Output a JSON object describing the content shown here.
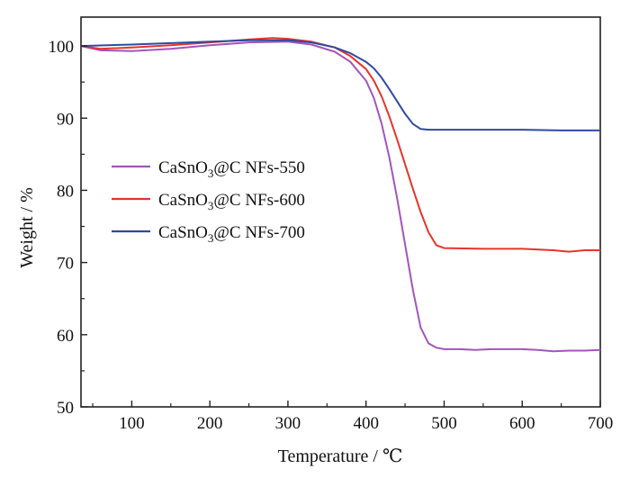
{
  "chart_data": {
    "type": "line",
    "xlabel": "Temperature / ℃",
    "ylabel": "Weight / %",
    "xlim": [
      35,
      700
    ],
    "ylim": [
      50,
      104
    ],
    "xticks": [
      "100",
      "200",
      "300",
      "400",
      "500",
      "600",
      "700"
    ],
    "yticks": [
      "50",
      "60",
      "70",
      "80",
      "90",
      "100"
    ],
    "legend_position": "middle-left",
    "grid": false,
    "series": [
      {
        "name": "CaSnO3@C NFs-550",
        "name_main": "CaSnO",
        "name_sub": "3",
        "name_tail": "@C NFs-550",
        "color": "#a455b8",
        "points": [
          [
            35,
            100
          ],
          [
            60,
            99.4
          ],
          [
            100,
            99.3
          ],
          [
            150,
            99.6
          ],
          [
            200,
            100.1
          ],
          [
            250,
            100.5
          ],
          [
            300,
            100.6
          ],
          [
            330,
            100.2
          ],
          [
            360,
            99.2
          ],
          [
            380,
            97.8
          ],
          [
            400,
            95.2
          ],
          [
            410,
            92.8
          ],
          [
            420,
            89.2
          ],
          [
            430,
            84.5
          ],
          [
            440,
            78.8
          ],
          [
            450,
            72.5
          ],
          [
            460,
            66.2
          ],
          [
            470,
            61.0
          ],
          [
            480,
            58.8
          ],
          [
            490,
            58.2
          ],
          [
            500,
            58.0
          ],
          [
            520,
            58.0
          ],
          [
            540,
            57.9
          ],
          [
            560,
            58.0
          ],
          [
            580,
            58.0
          ],
          [
            600,
            58.0
          ],
          [
            620,
            57.9
          ],
          [
            640,
            57.7
          ],
          [
            660,
            57.8
          ],
          [
            680,
            57.8
          ],
          [
            700,
            57.9
          ]
        ]
      },
      {
        "name": "CaSnO3@C NFs-600",
        "name_main": "CaSnO",
        "name_sub": "3",
        "name_tail": "@C NFs-600",
        "color": "#e8332b",
        "points": [
          [
            35,
            100
          ],
          [
            60,
            99.6
          ],
          [
            100,
            99.8
          ],
          [
            150,
            100.1
          ],
          [
            200,
            100.5
          ],
          [
            250,
            100.9
          ],
          [
            280,
            101.1
          ],
          [
            300,
            101.0
          ],
          [
            330,
            100.6
          ],
          [
            360,
            99.8
          ],
          [
            380,
            98.6
          ],
          [
            400,
            96.8
          ],
          [
            410,
            95.2
          ],
          [
            420,
            93.0
          ],
          [
            430,
            90.2
          ],
          [
            440,
            87.0
          ],
          [
            450,
            83.6
          ],
          [
            460,
            80.2
          ],
          [
            470,
            77.0
          ],
          [
            480,
            74.2
          ],
          [
            490,
            72.4
          ],
          [
            500,
            72.0
          ],
          [
            550,
            71.9
          ],
          [
            600,
            71.9
          ],
          [
            640,
            71.7
          ],
          [
            660,
            71.5
          ],
          [
            680,
            71.7
          ],
          [
            700,
            71.7
          ]
        ]
      },
      {
        "name": "CaSnO3@C NFs-700",
        "name_main": "CaSnO",
        "name_sub": "3",
        "name_tail": "@C NFs-700",
        "color": "#2f4aa0",
        "points": [
          [
            35,
            100
          ],
          [
            100,
            100.2
          ],
          [
            150,
            100.4
          ],
          [
            200,
            100.6
          ],
          [
            250,
            100.8
          ],
          [
            300,
            100.8
          ],
          [
            330,
            100.5
          ],
          [
            360,
            99.8
          ],
          [
            380,
            99.0
          ],
          [
            400,
            97.8
          ],
          [
            410,
            96.9
          ],
          [
            420,
            95.6
          ],
          [
            430,
            94.0
          ],
          [
            440,
            92.3
          ],
          [
            450,
            90.6
          ],
          [
            460,
            89.2
          ],
          [
            470,
            88.5
          ],
          [
            480,
            88.4
          ],
          [
            500,
            88.4
          ],
          [
            550,
            88.4
          ],
          [
            600,
            88.4
          ],
          [
            650,
            88.3
          ],
          [
            700,
            88.3
          ]
        ]
      }
    ]
  }
}
